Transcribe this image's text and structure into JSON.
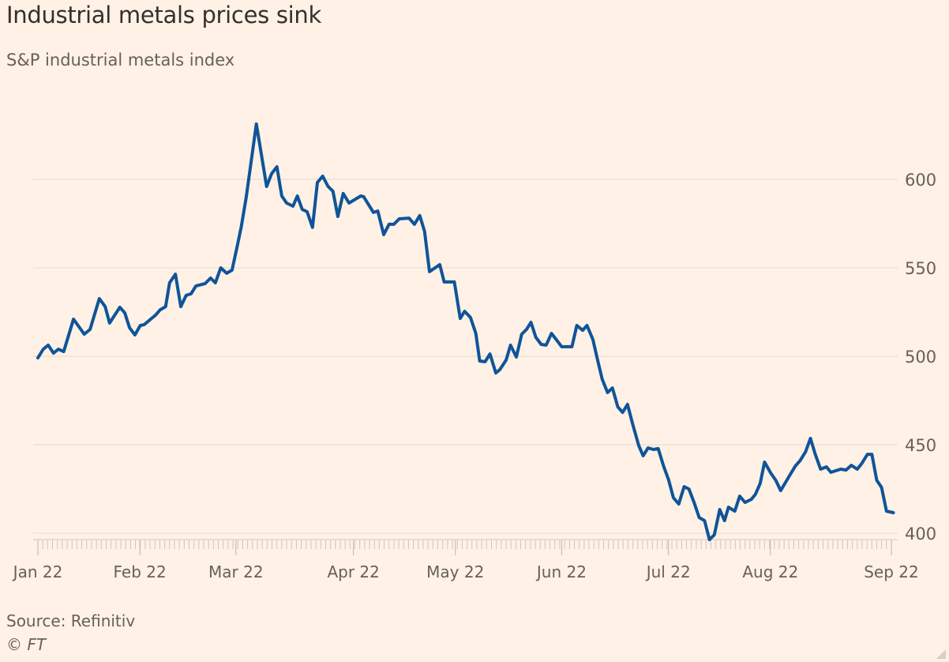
{
  "chart_data": {
    "type": "line",
    "title": "Industrial metals prices sink",
    "subtitle": "S&P industrial metals index",
    "xlabel": "",
    "ylabel": "",
    "x_unit": "trading days since 3 Jan 2022",
    "ylim": [
      400,
      600
    ],
    "y_ticks": [
      400,
      450,
      500,
      550,
      600
    ],
    "grid": true,
    "x_ticks": [
      {
        "label": "Jan 22",
        "x": 0
      },
      {
        "label": "Feb 22",
        "x": 20.9
      },
      {
        "label": "Mar 22",
        "x": 40.6
      },
      {
        "label": "Apr 22",
        "x": 64.7
      },
      {
        "label": "May 22",
        "x": 85.6
      },
      {
        "label": "Jun 22",
        "x": 107.4
      },
      {
        "label": "Jul 22",
        "x": 129.3
      },
      {
        "label": "Aug 22",
        "x": 150.2
      },
      {
        "label": "Sep 22",
        "x": 175
      }
    ],
    "xlim": [
      0,
      175
    ],
    "series": [
      {
        "name": "S&P industrial metals index",
        "color": "#0f5499",
        "x": [
          0,
          1.1,
          2.1,
          3.2,
          4.2,
          5.3,
          7.3,
          9.5,
          10.7,
          12.6,
          13.8,
          14.7,
          16.8,
          17.8,
          18.8,
          19.9,
          21.0,
          21.8,
          23.3,
          24.1,
          25.1,
          26.2,
          27.0,
          28.2,
          29.3,
          30.4,
          31.4,
          32.4,
          34.3,
          35.4,
          36.4,
          37.5,
          38.7,
          39.8,
          40.8,
          41.7,
          42.7,
          44.8,
          46.9,
          47.9,
          49.0,
          50.0,
          51.0,
          52.3,
          53.2,
          54.2,
          55.2,
          56.3,
          57.3,
          58.4,
          59.5,
          60.5,
          61.5,
          62.6,
          63.8,
          66.2,
          66.8,
          68.8,
          69.7,
          70.9,
          72.0,
          73.0,
          74.1,
          76.1,
          77.2,
          78.3,
          79.3,
          80.3,
          82.4,
          83.3,
          85.4,
          86.6,
          87.5,
          88.7,
          89.8,
          90.6,
          91.7,
          92.7,
          93.9,
          94.7,
          96.0,
          96.9,
          98.1,
          99.2,
          100.2,
          101.1,
          102.1,
          103.2,
          104.2,
          105.3,
          106.3,
          107.4,
          109.5,
          110.5,
          111.7,
          112.6,
          113.8,
          114.7,
          115.7,
          116.8,
          117.8,
          118.9,
          119.9,
          120.9,
          122.0,
          123.2,
          124.1,
          125.1,
          126.2,
          127.2,
          128.3,
          129.3,
          130.3,
          131.4,
          132.5,
          133.5,
          134.6,
          135.6,
          136.7,
          137.7,
          138.7,
          139.8,
          140.8,
          141.6,
          142.9,
          143.9,
          145.0,
          146.3,
          147.1,
          148.1,
          149.0,
          150.3,
          151.3,
          152.3,
          154.4,
          155.3,
          156.3,
          157.4,
          158.4,
          159.4,
          160.5,
          161.7,
          162.6,
          164.6,
          165.7,
          166.8,
          168.0,
          168.9,
          170.1,
          171.0,
          172.0,
          173.0,
          174.0,
          175.4
        ],
        "values": [
          499.1,
          504.0,
          506.3,
          501.8,
          504.0,
          502.7,
          521.0,
          512.5,
          515.2,
          532.6,
          528.1,
          518.8,
          527.7,
          524.6,
          516.1,
          512.1,
          517.4,
          517.9,
          521.4,
          523.2,
          526.3,
          528.1,
          541.5,
          546.4,
          528.1,
          534.4,
          535.3,
          539.7,
          541.1,
          544.2,
          541.5,
          550.0,
          546.9,
          548.7,
          561.2,
          573.2,
          589.7,
          631.3,
          596.0,
          603.1,
          607.1,
          590.6,
          586.6,
          584.8,
          590.6,
          583.0,
          581.7,
          572.8,
          598.2,
          601.8,
          596.0,
          593.3,
          579.0,
          592.0,
          586.6,
          590.6,
          590.2,
          581.3,
          582.1,
          568.8,
          574.6,
          574.6,
          577.7,
          578.1,
          574.6,
          579.5,
          570.5,
          547.8,
          551.8,
          542.0,
          542.0,
          521.4,
          525.4,
          521.9,
          512.9,
          497.3,
          496.9,
          501.3,
          490.6,
          492.4,
          497.8,
          506.3,
          499.6,
          512.5,
          515.2,
          519.2,
          510.7,
          506.7,
          506.3,
          512.9,
          509.4,
          505.4,
          505.4,
          517.4,
          514.7,
          517.4,
          509.4,
          498.7,
          487.1,
          479.5,
          482.1,
          471.4,
          468.3,
          472.8,
          461.2,
          449.6,
          443.8,
          448.2,
          447.3,
          447.8,
          437.9,
          430.4,
          420.1,
          416.5,
          426.3,
          425.0,
          417.0,
          408.9,
          407.1,
          396.4,
          399.1,
          413.4,
          407.1,
          414.7,
          412.5,
          421.0,
          417.4,
          419.2,
          421.9,
          428.1,
          440.2,
          433.9,
          429.9,
          424.1,
          433.9,
          437.9,
          441.1,
          446.0,
          453.6,
          444.6,
          436.2,
          437.5,
          434.4,
          436.2,
          435.7,
          438.4,
          436.2,
          439.3,
          444.6,
          444.6,
          429.9,
          425.9,
          412.5,
          411.6
        ]
      }
    ],
    "source": "Source: Refinitiv",
    "credit": "© FT"
  }
}
